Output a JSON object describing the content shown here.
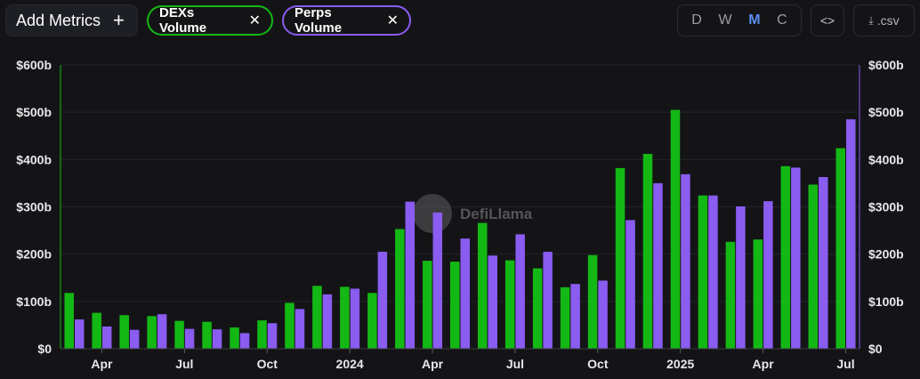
{
  "toolbar": {
    "add_metrics_label": "Add Metrics",
    "add_icon": "plus-icon",
    "chips": [
      {
        "label": "DEXs Volume",
        "color": "#14b814",
        "close_icon": "close-icon"
      },
      {
        "label": "Perps Volume",
        "color": "#8a5cf0",
        "close_icon": "close-icon"
      }
    ],
    "periods": [
      "D",
      "W",
      "M",
      "C"
    ],
    "active_period": "M",
    "embed_icon": "code-icon",
    "csv_label": ".csv",
    "csv_icon": "download-file-icon"
  },
  "watermark": "DefiLlama",
  "chart_data": {
    "type": "bar",
    "title": "",
    "xlabel": "",
    "ylabel": "",
    "ylim": [
      0,
      600
    ],
    "y_ticks": [
      "$0",
      "$100b",
      "$200b",
      "$300b",
      "$400b",
      "$500b",
      "$600b"
    ],
    "x_ticks": [
      {
        "label": "Apr",
        "month_index": 1
      },
      {
        "label": "Jul",
        "month_index": 4
      },
      {
        "label": "Oct",
        "month_index": 7
      },
      {
        "label": "2024",
        "month_index": 10
      },
      {
        "label": "Apr",
        "month_index": 13
      },
      {
        "label": "Jul",
        "month_index": 16
      },
      {
        "label": "Oct",
        "month_index": 19
      },
      {
        "label": "2025",
        "month_index": 22
      },
      {
        "label": "Apr",
        "month_index": 25
      },
      {
        "label": "Jul",
        "month_index": 28
      }
    ],
    "categories": [
      "Mar 2023",
      "Apr 2023",
      "May 2023",
      "Jun 2023",
      "Jul 2023",
      "Aug 2023",
      "Sep 2023",
      "Oct 2023",
      "Nov 2023",
      "Dec 2023",
      "Jan 2024",
      "Feb 2024",
      "Mar 2024",
      "Apr 2024",
      "May 2024",
      "Jun 2024",
      "Jul 2024",
      "Aug 2024",
      "Sep 2024",
      "Oct 2024",
      "Nov 2024",
      "Dec 2024",
      "Jan 2025",
      "Feb 2025",
      "Mar 2025",
      "Apr 2025",
      "May 2025",
      "Jun 2025",
      "Jul 2025"
    ],
    "series": [
      {
        "name": "DEXs Volume",
        "color": "#14b814",
        "values": [
          118,
          76,
          71,
          69,
          59,
          57,
          45,
          60,
          97,
          133,
          131,
          118,
          253,
          186,
          184,
          266,
          187,
          170,
          130,
          198,
          382,
          412,
          505,
          324,
          226,
          231,
          386,
          347,
          424
        ]
      },
      {
        "name": "Perps Volume",
        "color": "#8a5cf0",
        "values": [
          62,
          47,
          40,
          73,
          42,
          41,
          33,
          54,
          84,
          115,
          127,
          205,
          311,
          288,
          233,
          197,
          242,
          205,
          137,
          144,
          272,
          350,
          369,
          324,
          301,
          312,
          383,
          363,
          485
        ]
      }
    ]
  }
}
